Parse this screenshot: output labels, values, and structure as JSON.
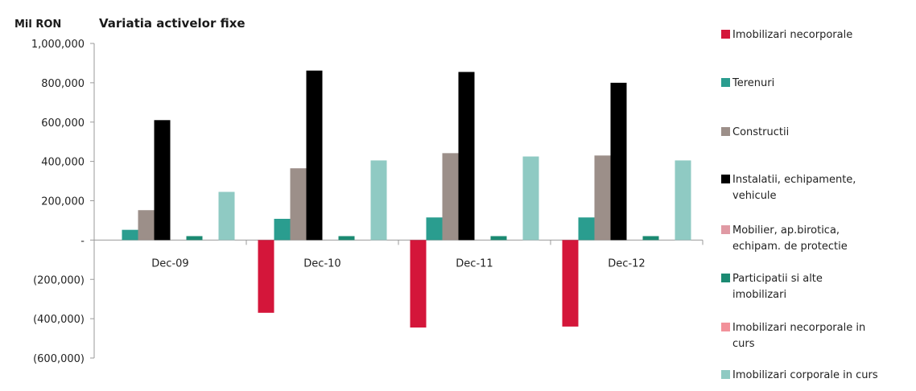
{
  "chart_data": {
    "type": "bar",
    "title": "Variatia activelor fixe",
    "unit": "Mil RON",
    "categories": [
      "Dec-09",
      "Dec-10",
      "Dec-11",
      "Dec-12"
    ],
    "ylim": [
      -600000,
      1000000
    ],
    "y_ticks": [
      {
        "value": 1000000,
        "label": "1,000,000"
      },
      {
        "value": 800000,
        "label": "800,000"
      },
      {
        "value": 600000,
        "label": "600,000"
      },
      {
        "value": 400000,
        "label": "400,000"
      },
      {
        "value": 200000,
        "label": "200,000"
      },
      {
        "value": 0,
        "label": "-"
      },
      {
        "value": -200000,
        "label": "(200,000)"
      },
      {
        "value": -400000,
        "label": "(400,000)"
      },
      {
        "value": -600000,
        "label": "(600,000)"
      }
    ],
    "grid": false,
    "legend_position": "right",
    "series": [
      {
        "name": "Imobilizari necorporale",
        "legend_lines": [
          "Imobilizari necorporale"
        ],
        "color": "#d4163a",
        "values": [
          0,
          -370000,
          -445000,
          -440000
        ]
      },
      {
        "name": "Terenuri",
        "legend_lines": [
          "Terenuri"
        ],
        "color": "#2a9d8f",
        "values": [
          52000,
          108000,
          115000,
          115000
        ]
      },
      {
        "name": "Constructii",
        "legend_lines": [
          "Constructii"
        ],
        "color": "#9c8f89",
        "values": [
          152000,
          365000,
          442000,
          430000
        ]
      },
      {
        "name": "Instalatii, echipamente, vehicule",
        "legend_lines": [
          "Instalatii, echipamente,",
          "vehicule"
        ],
        "color": "#000000",
        "values": [
          610000,
          862000,
          855000,
          800000
        ]
      },
      {
        "name": "Mobilier, ap.birotica, echipam. de protectie",
        "legend_lines": [
          "Mobilier, ap.birotica,",
          "echipam. de protectie"
        ],
        "color": "#e09aa4",
        "values": [
          0,
          0,
          0,
          0
        ]
      },
      {
        "name": "Participatii si alte imobilizari",
        "legend_lines": [
          "Participatii  si alte",
          "imobilizari"
        ],
        "color": "#1b8a72",
        "values": [
          20000,
          20000,
          20000,
          20000
        ]
      },
      {
        "name": "Imobilizari necorporale in curs",
        "legend_lines": [
          "Imobilizari necorporale in",
          "curs"
        ],
        "color": "#f2919a",
        "values": [
          0,
          0,
          0,
          0
        ]
      },
      {
        "name": "Imobilizari corporale in curs",
        "legend_lines": [
          "Imobilizari corporale in curs"
        ],
        "color": "#8fcac3",
        "values": [
          245000,
          405000,
          425000,
          405000
        ]
      }
    ]
  }
}
